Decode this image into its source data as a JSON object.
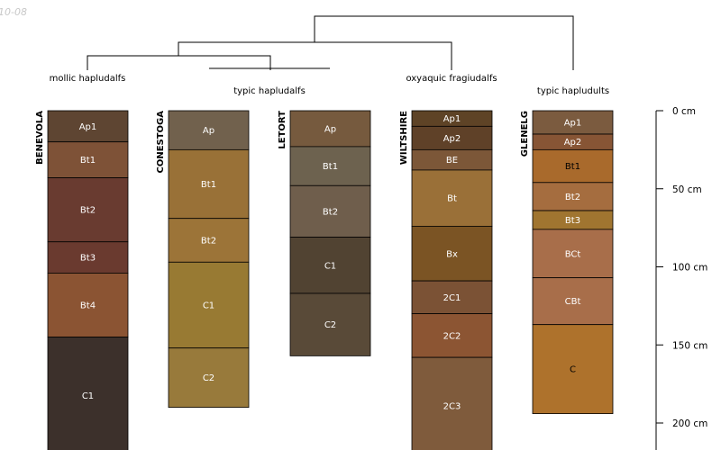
{
  "corner_text": "10-08",
  "dendrogram_groups": [
    "mollic hapludalfs",
    "typic hapludalfs",
    "oxyaquic fragiudalfs",
    "typic hapludults"
  ],
  "depth_axis": {
    "unit": "cm",
    "ticks": [
      {
        "depth": 0,
        "label": "0 cm"
      },
      {
        "depth": 50,
        "label": "50 cm"
      },
      {
        "depth": 100,
        "label": "100 cm"
      },
      {
        "depth": 150,
        "label": "150 cm"
      },
      {
        "depth": 200,
        "label": "200 cm"
      }
    ]
  },
  "profiles": [
    {
      "name": "BENEVOLA",
      "horizons": [
        {
          "label": "Ap1",
          "top": 0,
          "bottom": 20,
          "color": "#5e4532",
          "text_color": "#ffffff"
        },
        {
          "label": "Bt1",
          "top": 20,
          "bottom": 43,
          "color": "#7e5237",
          "text_color": "#ffffff"
        },
        {
          "label": "Bt2",
          "top": 43,
          "bottom": 84,
          "color": "#693b30",
          "text_color": "#ffffff"
        },
        {
          "label": "Bt3",
          "top": 84,
          "bottom": 104,
          "color": "#6a3a2f",
          "text_color": "#ffffff"
        },
        {
          "label": "Bt4",
          "top": 104,
          "bottom": 145,
          "color": "#8b5433",
          "text_color": "#ffffff"
        },
        {
          "label": "C1",
          "top": 145,
          "bottom": 220,
          "color": "#3c302b",
          "text_color": "#ffffff"
        }
      ]
    },
    {
      "name": "CONESTOGA",
      "horizons": [
        {
          "label": "Ap",
          "top": 0,
          "bottom": 25,
          "color": "#71614d",
          "text_color": "#ffffff"
        },
        {
          "label": "Bt1",
          "top": 25,
          "bottom": 69,
          "color": "#997137",
          "text_color": "#ffffff"
        },
        {
          "label": "Bt2",
          "top": 69,
          "bottom": 97,
          "color": "#9c7438",
          "text_color": "#ffffff"
        },
        {
          "label": "C1",
          "top": 97,
          "bottom": 152,
          "color": "#987a33",
          "text_color": "#ffffff"
        },
        {
          "label": "C2",
          "top": 152,
          "bottom": 190,
          "color": "#987a3b",
          "text_color": "#ffffff"
        }
      ]
    },
    {
      "name": "LETORT",
      "horizons": [
        {
          "label": "Ap",
          "top": 0,
          "bottom": 23,
          "color": "#765a3e",
          "text_color": "#ffffff"
        },
        {
          "label": "Bt1",
          "top": 23,
          "bottom": 48,
          "color": "#6d624f",
          "text_color": "#ffffff"
        },
        {
          "label": "Bt2",
          "top": 48,
          "bottom": 81,
          "color": "#6f5e4c",
          "text_color": "#ffffff"
        },
        {
          "label": "C1",
          "top": 81,
          "bottom": 117,
          "color": "#514332",
          "text_color": "#ffffff"
        },
        {
          "label": "C2",
          "top": 117,
          "bottom": 157,
          "color": "#594a38",
          "text_color": "#ffffff"
        }
      ]
    },
    {
      "name": "WILTSHIRE",
      "horizons": [
        {
          "label": "Ap1",
          "top": 0,
          "bottom": 10,
          "color": "#5e4326",
          "text_color": "#ffffff"
        },
        {
          "label": "Ap2",
          "top": 10,
          "bottom": 25,
          "color": "#5f4128",
          "text_color": "#ffffff"
        },
        {
          "label": "BE",
          "top": 25,
          "bottom": 38,
          "color": "#7c5738",
          "text_color": "#ffffff"
        },
        {
          "label": "Bt",
          "top": 38,
          "bottom": 74,
          "color": "#9a7038",
          "text_color": "#ffffff"
        },
        {
          "label": "Bx",
          "top": 74,
          "bottom": 109,
          "color": "#7b5424",
          "text_color": "#ffffff"
        },
        {
          "label": "2C1",
          "top": 109,
          "bottom": 130,
          "color": "#7b5235",
          "text_color": "#ffffff"
        },
        {
          "label": "2C2",
          "top": 130,
          "bottom": 158,
          "color": "#8c5533",
          "text_color": "#ffffff"
        },
        {
          "label": "2C3",
          "top": 158,
          "bottom": 220,
          "color": "#7f5b3c",
          "text_color": "#ffffff"
        }
      ]
    },
    {
      "name": "GLENELG",
      "horizons": [
        {
          "label": "Ap1",
          "top": 0,
          "bottom": 15,
          "color": "#7b5b3f",
          "text_color": "#ffffff"
        },
        {
          "label": "Ap2",
          "top": 15,
          "bottom": 25,
          "color": "#875535",
          "text_color": "#ffffff"
        },
        {
          "label": "Bt1",
          "top": 25,
          "bottom": 46,
          "color": "#a96a2c",
          "text_color": "#000000"
        },
        {
          "label": "Bt2",
          "top": 46,
          "bottom": 64,
          "color": "#a56d3f",
          "text_color": "#ffffff"
        },
        {
          "label": "Bt3",
          "top": 64,
          "bottom": 76,
          "color": "#a07530",
          "text_color": "#ffffff"
        },
        {
          "label": "BCt",
          "top": 76,
          "bottom": 107,
          "color": "#a86e4a",
          "text_color": "#ffffff"
        },
        {
          "label": "CBt",
          "top": 107,
          "bottom": 137,
          "color": "#a86e4a",
          "text_color": "#ffffff"
        },
        {
          "label": "C",
          "top": 137,
          "bottom": 194,
          "color": "#ae722c",
          "text_color": "#000000"
        }
      ]
    }
  ]
}
